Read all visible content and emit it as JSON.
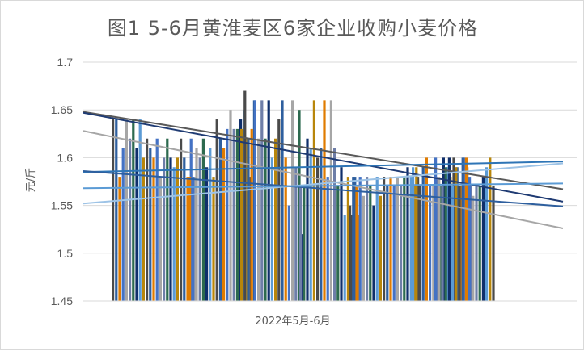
{
  "chart_data": {
    "type": "bar",
    "title": "图1 5-6月黄淮麦区6家企业收购小麦价格",
    "xlabel": "2022年5月-6月",
    "ylabel": "元/斤",
    "ylim": [
      1.45,
      1.7
    ],
    "yticks": [
      "1.45",
      "1.5",
      "1.55",
      "1.6",
      "1.65",
      "1.7"
    ],
    "grid": true,
    "series_colors": [
      "#4a4a4a",
      "#0f2f6b",
      "#a6a6a6",
      "#2e5f9e",
      "#5b9bd5",
      "#6e7ea8",
      "#e07b00",
      "#b8860b",
      "#2d6a4f",
      "#4472c4"
    ],
    "values": [
      1.64,
      1.64,
      1.58,
      1.61,
      1.64,
      1.62,
      1.64,
      1.61,
      1.64,
      1.6,
      1.62,
      1.61,
      1.6,
      1.62,
      1.58,
      1.6,
      1.62,
      1.6,
      1.59,
      1.6,
      1.62,
      1.6,
      1.58,
      1.62,
      1.58,
      1.58,
      1.58,
      1.61,
      1.6,
      1.62,
      1.59,
      1.61,
      1.58,
      1.64,
      1.62,
      1.61,
      1.63,
      1.65,
      1.63,
      1.63,
      1.64,
      1.65,
      1.62,
      1.58,
      1.66,
      1.63,
      1.67,
      1.62,
      1.63,
      1.66,
      1.62,
      1.66,
      1.62,
      1.66,
      1.6,
      1.62,
      1.64,
      1.66,
      1.6,
      1.55,
      1.66,
      1.59,
      1.65,
      1.52,
      1.57,
      1.57,
      1.62,
      1.61,
      1.66,
      1.6,
      1.61,
      1.66,
      1.58,
      1.66,
      1.61,
      1.57,
      1.59,
      1.54,
      1.58,
      1.54,
      1.58,
      1.54,
      1.55,
      1.58,
      1.57,
      1.58,
      1.56,
      1.58,
      1.57,
      1.55,
      1.58,
      1.56,
      1.58,
      1.57,
      1.58,
      1.57,
      1.58,
      1.57,
      1.58,
      1.59,
      1.58,
      1.57,
      1.58,
      1.59,
      1.59,
      1.57,
      1.59,
      1.6,
      1.57,
      1.57,
      1.58,
      1.57,
      1.6,
      1.59,
      1.58,
      1.6,
      1.59,
      1.57,
      1.6,
      1.59,
      1.57,
      1.6,
      1.58,
      1.57,
      1.59,
      1.6,
      1.57,
      1.59,
      1.57,
      1.6,
      1.6,
      1.58,
      1.56,
      1.57,
      1.57,
      1.58,
      1.59,
      1.6,
      1.57
    ],
    "trendlines": [
      {
        "color": "#595959",
        "start": 1.648,
        "end": 1.567
      },
      {
        "color": "#1f3b73",
        "start": 1.647,
        "end": 1.554
      },
      {
        "color": "#a6a6a6",
        "start": 1.628,
        "end": 1.526
      },
      {
        "color": "#2e75b6",
        "start": 1.585,
        "end": 1.596
      },
      {
        "color": "#9dc3e6",
        "start": 1.552,
        "end": 1.594
      },
      {
        "color": "#2e5f9e",
        "start": 1.586,
        "end": 1.549
      },
      {
        "color": "#5b9bd5",
        "start": 1.568,
        "end": 1.573
      }
    ]
  }
}
